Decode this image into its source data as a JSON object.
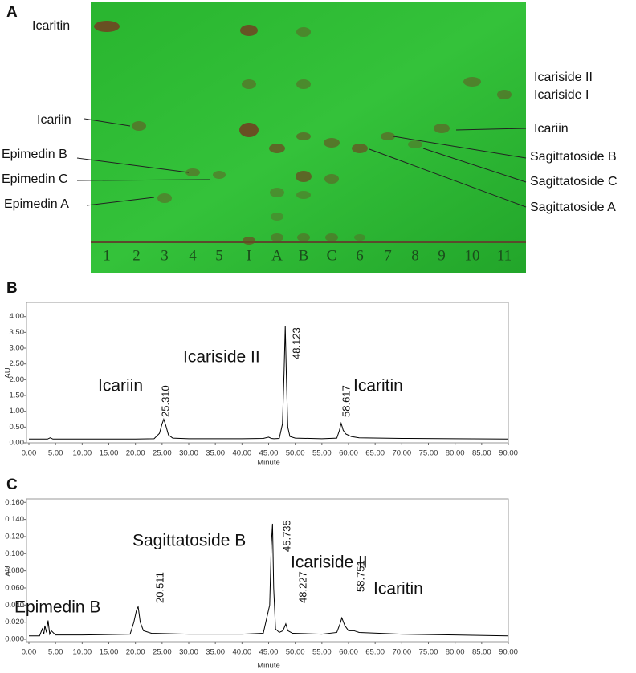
{
  "tlc": {
    "panel": "A",
    "lanes": [
      "1",
      "2",
      "3",
      "4",
      "5",
      "I",
      "A",
      "B",
      "C",
      "6",
      "7",
      "8",
      "9",
      "10",
      "11"
    ],
    "labels_left": [
      "Icaritin",
      "Icariin",
      "Epimedin B",
      "Epimedin C",
      "Epimedin A"
    ],
    "labels_right": [
      "Icariside II",
      "Icariside I",
      "Icariin",
      "Sagittatoside B",
      "Sagittatoside C",
      "Sagittatoside A"
    ]
  },
  "chart_data": [
    {
      "type": "line",
      "panel": "B",
      "x_label": "Minute",
      "y_label": "AU",
      "color": "#000000",
      "annotations": [
        "Icariin",
        "Icariside II",
        "Icaritin"
      ],
      "peak_labels": [
        {
          "value": 25.31,
          "label": "25.310"
        },
        {
          "value": 48.123,
          "label": "48.123"
        },
        {
          "value": 58.617,
          "label": "58.617"
        }
      ],
      "x": [
        0,
        3.5,
        4,
        4.5,
        10,
        20,
        23.5,
        24.5,
        25.0,
        25.31,
        25.7,
        26.2,
        27,
        30,
        40,
        44,
        45,
        45.5,
        46,
        47,
        47.6,
        47.9,
        48.123,
        48.35,
        48.6,
        49,
        50,
        55,
        57.8,
        58.3,
        58.617,
        59.0,
        59.5,
        60.5,
        62,
        70,
        80,
        90
      ],
      "values": [
        0.12,
        0.12,
        0.16,
        0.12,
        0.12,
        0.12,
        0.13,
        0.3,
        0.6,
        0.75,
        0.55,
        0.25,
        0.15,
        0.13,
        0.13,
        0.14,
        0.18,
        0.14,
        0.13,
        0.14,
        0.6,
        2.2,
        3.7,
        2.0,
        0.5,
        0.2,
        0.15,
        0.13,
        0.15,
        0.4,
        0.62,
        0.4,
        0.28,
        0.2,
        0.16,
        0.14,
        0.13,
        0.12
      ],
      "xlim": [
        0,
        90
      ],
      "xticks": [
        {
          "value": 0,
          "label": "0.00"
        },
        {
          "value": 5,
          "label": "5.00"
        },
        {
          "value": 10,
          "label": "10.00"
        },
        {
          "value": 15,
          "label": "15.00"
        },
        {
          "value": 20,
          "label": "20.00"
        },
        {
          "value": 25,
          "label": "25.00"
        },
        {
          "value": 30,
          "label": "30.00"
        },
        {
          "value": 35,
          "label": "35.00"
        },
        {
          "value": 40,
          "label": "40.00"
        },
        {
          "value": 45,
          "label": "45.00"
        },
        {
          "value": 50,
          "label": "50.00"
        },
        {
          "value": 55,
          "label": "55.00"
        },
        {
          "value": 60,
          "label": "60.00"
        },
        {
          "value": 65,
          "label": "65.00"
        },
        {
          "value": 70,
          "label": "70.00"
        },
        {
          "value": 75,
          "label": "75.00"
        },
        {
          "value": 80,
          "label": "80.00"
        },
        {
          "value": 85,
          "label": "85.00"
        },
        {
          "value": 90,
          "label": "90.00"
        }
      ],
      "ylim": [
        0,
        4.45
      ],
      "yticks": [
        {
          "value": 0,
          "label": "0.00"
        },
        {
          "value": 0.5,
          "label": "0.50"
        },
        {
          "value": 1,
          "label": "1.00"
        },
        {
          "value": 1.5,
          "label": "1.50"
        },
        {
          "value": 2,
          "label": "2.00"
        },
        {
          "value": 2.5,
          "label": "2.50"
        },
        {
          "value": 3,
          "label": "3.00"
        },
        {
          "value": 3.5,
          "label": "3.50"
        },
        {
          "value": 4,
          "label": "4.00"
        }
      ]
    },
    {
      "type": "line",
      "panel": "C",
      "x_label": "Minute",
      "y_label": "AU",
      "color": "#000000",
      "annotations": [
        "Epimedin B",
        "Sagittatoside B",
        "Icariside II",
        "Icaritin"
      ],
      "peak_labels": [
        {
          "value": 20.511,
          "label": "20.511"
        },
        {
          "value": 45.735,
          "label": "45.735"
        },
        {
          "value": 48.227,
          "label": "48.227"
        },
        {
          "value": 58.751,
          "label": "58.751"
        }
      ],
      "x": [
        0,
        2,
        2.5,
        2.8,
        3.0,
        3.3,
        3.6,
        3.9,
        4.2,
        5,
        10,
        19,
        19.7,
        20.2,
        20.511,
        20.9,
        21.5,
        23,
        30,
        40,
        44,
        45.2,
        45.5,
        45.735,
        45.95,
        46.3,
        47,
        47.7,
        48.227,
        48.6,
        49.5,
        55,
        57.8,
        58.4,
        58.751,
        59.3,
        60,
        61,
        62,
        70,
        80,
        90
      ],
      "values": [
        0.004,
        0.004,
        0.012,
        0.006,
        0.016,
        0.008,
        0.022,
        0.006,
        0.01,
        0.005,
        0.005,
        0.006,
        0.02,
        0.034,
        0.038,
        0.02,
        0.01,
        0.007,
        0.006,
        0.006,
        0.007,
        0.04,
        0.11,
        0.135,
        0.06,
        0.012,
        0.008,
        0.01,
        0.018,
        0.01,
        0.007,
        0.006,
        0.008,
        0.018,
        0.025,
        0.016,
        0.01,
        0.01,
        0.008,
        0.006,
        0.005,
        0.004
      ],
      "xlim": [
        0,
        90
      ],
      "xticks": [
        {
          "value": 0,
          "label": "0.00"
        },
        {
          "value": 5,
          "label": "5.00"
        },
        {
          "value": 10,
          "label": "10.00"
        },
        {
          "value": 15,
          "label": "15.00"
        },
        {
          "value": 20,
          "label": "20.00"
        },
        {
          "value": 25,
          "label": "25.00"
        },
        {
          "value": 30,
          "label": "30.00"
        },
        {
          "value": 35,
          "label": "35.00"
        },
        {
          "value": 40,
          "label": "40.00"
        },
        {
          "value": 45,
          "label": "45.00"
        },
        {
          "value": 50,
          "label": "50.00"
        },
        {
          "value": 55,
          "label": "55.00"
        },
        {
          "value": 60,
          "label": "60.00"
        },
        {
          "value": 65,
          "label": "65.00"
        },
        {
          "value": 70,
          "label": "70.00"
        },
        {
          "value": 75,
          "label": "75.00"
        },
        {
          "value": 80,
          "label": "80.00"
        },
        {
          "value": 85,
          "label": "85.00"
        },
        {
          "value": 90,
          "label": "90.00"
        }
      ],
      "ylim": [
        0,
        0.164
      ],
      "yticks": [
        {
          "value": 0,
          "label": "0.000"
        },
        {
          "value": 0.02,
          "label": "0.020"
        },
        {
          "value": 0.04,
          "label": "0.040"
        },
        {
          "value": 0.06,
          "label": "0.060"
        },
        {
          "value": 0.08,
          "label": "0.080"
        },
        {
          "value": 0.1,
          "label": "0.100"
        },
        {
          "value": 0.12,
          "label": "0.120"
        },
        {
          "value": 0.14,
          "label": "0.140"
        },
        {
          "value": 0.16,
          "label": "0.160"
        }
      ]
    }
  ]
}
